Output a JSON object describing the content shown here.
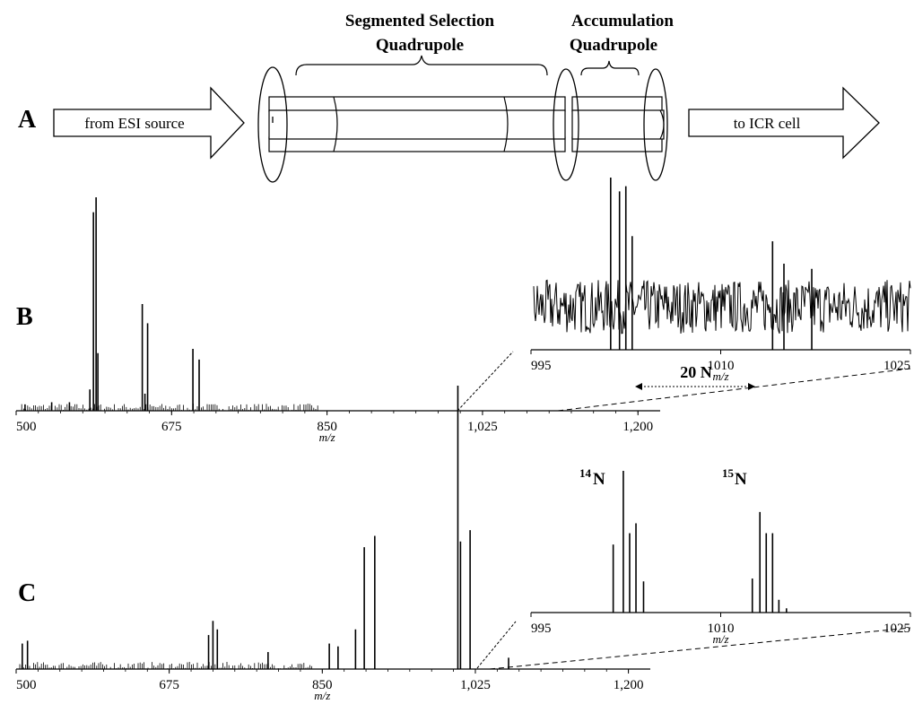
{
  "panel_a": {
    "letter": "A",
    "selection_label_line1": "Segmented Selection",
    "selection_label_line2": "Quadrupole",
    "accumulation_label_line1": "Accumulation",
    "accumulation_label_line2": "Quadrupole",
    "inlet_arrow_label": "from ESI source",
    "outlet_arrow_label": "to ICR cell"
  },
  "panel_b": {
    "letter": "B"
  },
  "panel_c": {
    "letter": "C",
    "n14_label": "N",
    "n14_sup": "14",
    "n15_label": "N",
    "n15_sup": "15",
    "span_label": "20 N"
  },
  "chart_data": [
    {
      "id": "B-main",
      "type": "line",
      "xlabel": "m/z",
      "xlim": [
        500,
        1225
      ],
      "x_ticks": [
        500,
        675,
        850,
        1025,
        1200
      ],
      "x_tick_labels": [
        "500",
        "675",
        "850",
        "1,025",
        "1,200"
      ],
      "peaks": [
        {
          "x": 587,
          "y": 0.93
        },
        {
          "x": 590,
          "y": 1.0
        },
        {
          "x": 592,
          "y": 0.27
        },
        {
          "x": 583,
          "y": 0.1
        },
        {
          "x": 642,
          "y": 0.5
        },
        {
          "x": 645,
          "y": 0.08
        },
        {
          "x": 648,
          "y": 0.41
        },
        {
          "x": 699,
          "y": 0.29
        },
        {
          "x": 706,
          "y": 0.24
        },
        {
          "x": 510,
          "y": 0.03
        },
        {
          "x": 540,
          "y": 0.04
        },
        {
          "x": 560,
          "y": 0.04
        }
      ]
    },
    {
      "id": "B-inset",
      "type": "line",
      "xlabel": "m/z",
      "xlim": [
        995,
        1025
      ],
      "x_ticks": [
        995,
        1010,
        1025
      ],
      "x_tick_labels": [
        "995",
        "1010",
        "1025"
      ],
      "peaks": [
        {
          "x": 1001.3,
          "y": 1.0
        },
        {
          "x": 1002.0,
          "y": 0.92
        },
        {
          "x": 1002.5,
          "y": 0.95
        },
        {
          "x": 1003.0,
          "y": 0.66
        },
        {
          "x": 1014.1,
          "y": 0.63
        },
        {
          "x": 1015.0,
          "y": 0.5
        },
        {
          "x": 1017.2,
          "y": 0.47
        }
      ]
    },
    {
      "id": "C-main",
      "type": "line",
      "xlabel": "m/z",
      "xlim": [
        500,
        1225
      ],
      "x_ticks": [
        500,
        675,
        850,
        1025,
        1200
      ],
      "x_tick_labels": [
        "500",
        "675",
        "850",
        "1,025",
        "1,200"
      ],
      "peaks": [
        {
          "x": 507,
          "y": 0.09
        },
        {
          "x": 513,
          "y": 0.1
        },
        {
          "x": 720,
          "y": 0.12
        },
        {
          "x": 725,
          "y": 0.17
        },
        {
          "x": 730,
          "y": 0.14
        },
        {
          "x": 788,
          "y": 0.06
        },
        {
          "x": 858,
          "y": 0.09
        },
        {
          "x": 868,
          "y": 0.08
        },
        {
          "x": 888,
          "y": 0.14
        },
        {
          "x": 898,
          "y": 0.43
        },
        {
          "x": 910,
          "y": 0.47
        },
        {
          "x": 1005,
          "y": 1.0
        },
        {
          "x": 1008,
          "y": 0.45
        },
        {
          "x": 1019,
          "y": 0.49
        },
        {
          "x": 1063,
          "y": 0.04
        }
      ]
    },
    {
      "id": "C-inset",
      "type": "line",
      "xlabel": "m/z",
      "xlim": [
        995,
        1025
      ],
      "x_ticks": [
        995,
        1010,
        1025
      ],
      "x_tick_labels": [
        "995",
        "1010",
        "1025"
      ],
      "peaks": [
        {
          "x": 1001.5,
          "y": 0.48
        },
        {
          "x": 1002.3,
          "y": 1.0
        },
        {
          "x": 1002.8,
          "y": 0.56
        },
        {
          "x": 1003.3,
          "y": 0.63
        },
        {
          "x": 1003.9,
          "y": 0.22
        },
        {
          "x": 1012.5,
          "y": 0.24
        },
        {
          "x": 1013.1,
          "y": 0.71
        },
        {
          "x": 1013.6,
          "y": 0.56
        },
        {
          "x": 1014.1,
          "y": 0.56
        },
        {
          "x": 1014.6,
          "y": 0.09
        },
        {
          "x": 1015.2,
          "y": 0.03
        }
      ]
    }
  ]
}
